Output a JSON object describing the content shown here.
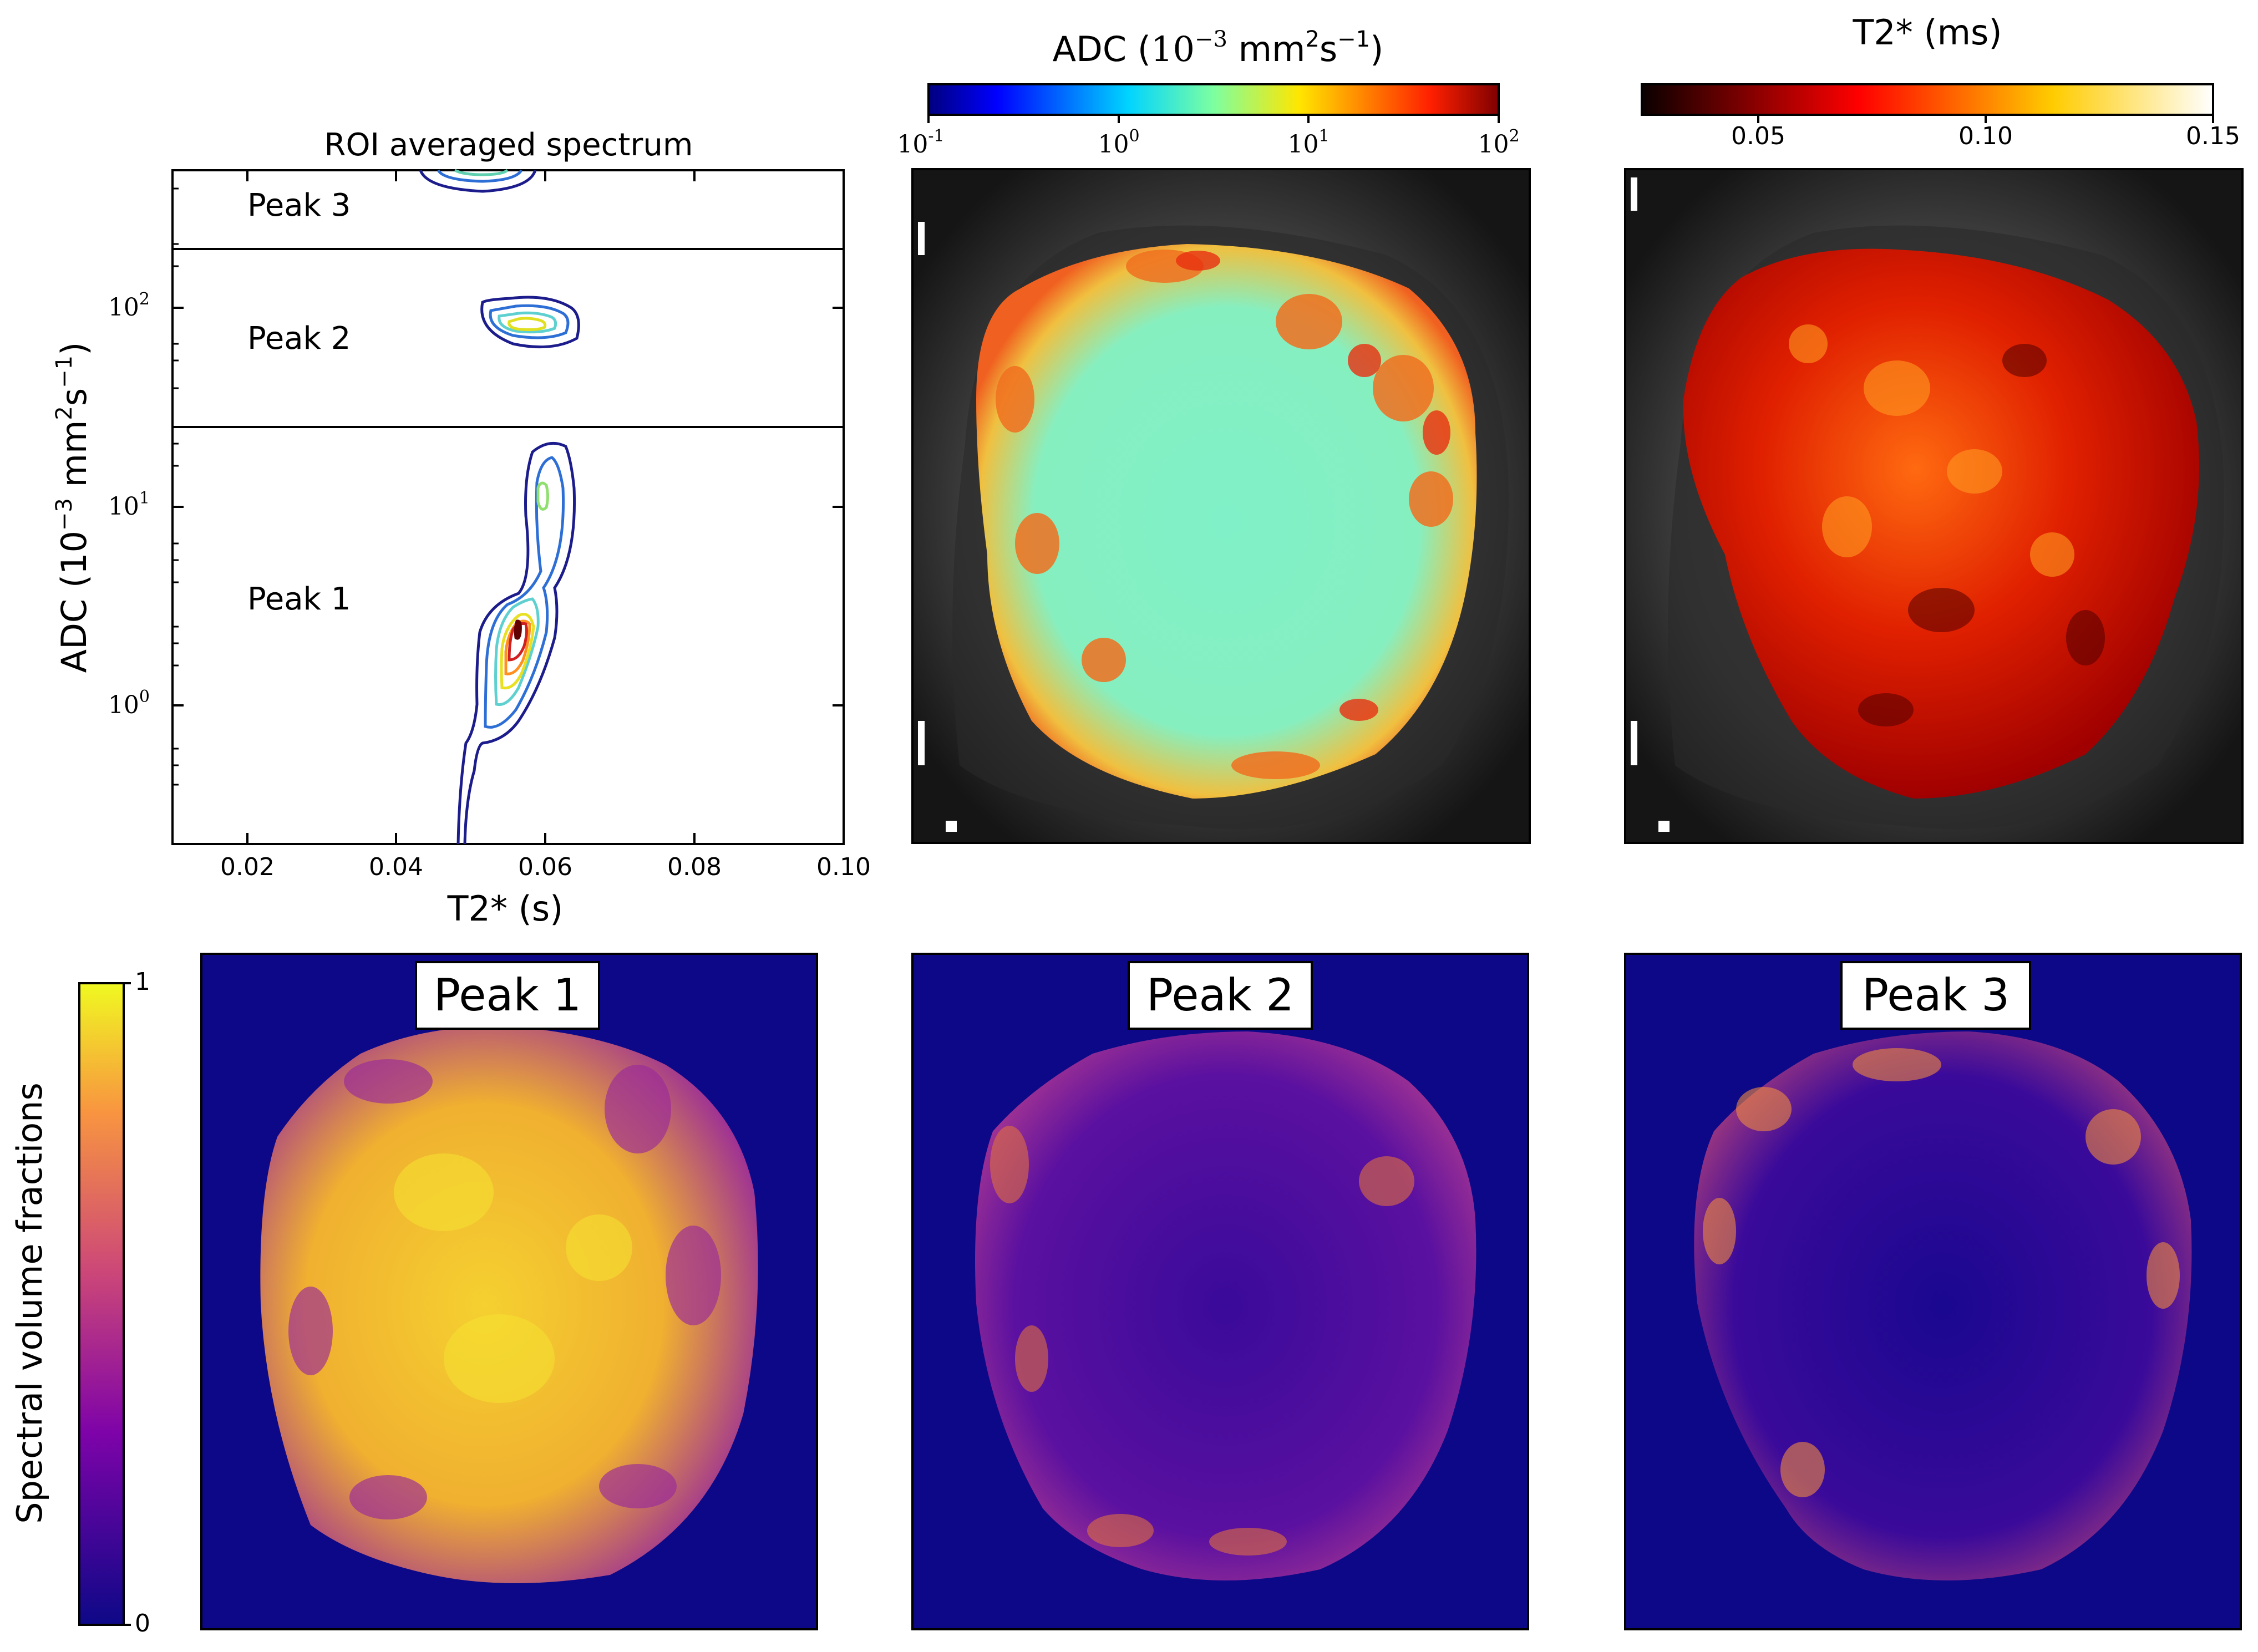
{
  "spectrum": {
    "title": "ROI averaged spectrum",
    "xlabel": "T2* (s)",
    "ylabel_main": "ADC (10",
    "ylabel_exp": "−3",
    "ylabel_unit": " mm",
    "ylabel_sq": "2",
    "ylabel_s": "s",
    "ylabel_sexp": "−1",
    "ylabel_close": ")",
    "xticks": [
      "0.02",
      "0.04",
      "0.06",
      "0.08",
      "0.10"
    ],
    "yticks": [
      {
        "base": "10",
        "exp": "0"
      },
      {
        "base": "10",
        "exp": "1"
      },
      {
        "base": "10",
        "exp": "2"
      }
    ],
    "peaks": [
      {
        "label": "Peak 1",
        "color": "#1a1aff"
      },
      {
        "label": "Peak 2",
        "color": "#3d8c2a"
      },
      {
        "label": "Peak 3",
        "color": "#e01010"
      }
    ]
  },
  "adc_map": {
    "colorbar_title_main": "ADC (",
    "colorbar_title_math": "10",
    "colorbar_title_exp": "−3",
    "colorbar_title_unit": " mm",
    "colorbar_title_sq": "2",
    "colorbar_title_s": "s",
    "colorbar_title_sexp": "−1",
    "colorbar_title_close": ")",
    "ticks": [
      {
        "base": "10",
        "exp": "-1"
      },
      {
        "base": "10",
        "exp": "0"
      },
      {
        "base": "10",
        "exp": "1"
      },
      {
        "base": "10",
        "exp": "2"
      }
    ]
  },
  "t2_map": {
    "colorbar_title": "T2* (ms)",
    "ticks": [
      "0.05",
      "0.10",
      "0.15"
    ]
  },
  "fraction_maps": {
    "colorbar_label": "Spectral volume fractions",
    "colorbar_max": "1",
    "colorbar_min": "0",
    "panels": [
      {
        "label": "Peak 1",
        "color": "#1a1aff"
      },
      {
        "label": "Peak 2",
        "color": "#3d8c2a"
      },
      {
        "label": "Peak 3",
        "color": "#e01010"
      }
    ]
  }
}
